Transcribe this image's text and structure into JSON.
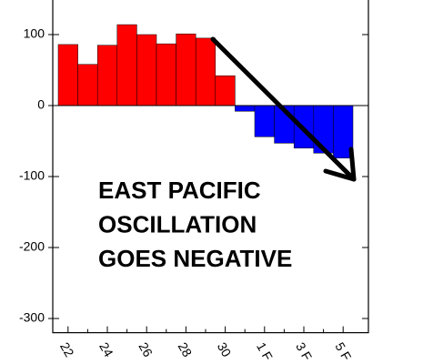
{
  "chart_data": {
    "type": "bar",
    "categories": [
      "22",
      null,
      "24",
      null,
      "26",
      null,
      "28",
      null,
      "30",
      null,
      "1 F",
      null,
      "3 F",
      null,
      "5 F"
    ],
    "values": [
      86,
      58,
      85,
      114,
      100,
      87,
      101,
      95,
      42,
      -8,
      -44,
      -53,
      -60,
      -67,
      -74
    ],
    "positive_color": "#ff0000",
    "negative_color": "#0000ff",
    "ylim": [
      -320,
      150
    ],
    "yticks": [
      100,
      0,
      -100,
      -200,
      -300
    ],
    "annotation": [
      "EAST PACIFIC",
      "OSCILLATION",
      "GOES NEGATIVE"
    ]
  }
}
